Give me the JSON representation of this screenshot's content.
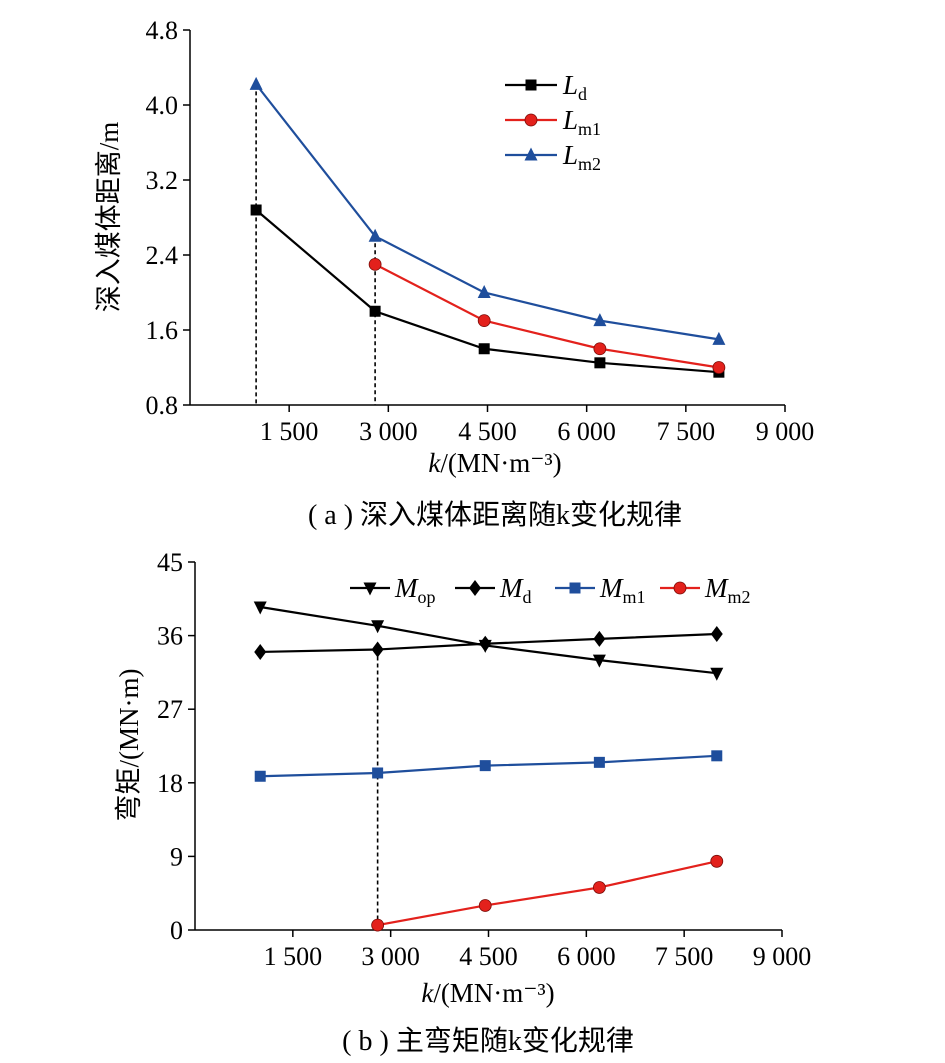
{
  "chart_data": [
    {
      "type": "line",
      "caption": "( a ) 深入煤体距离随k变化规律",
      "ylabel": "深入煤体距离/m",
      "xlabel": "k/(MN·m⁻³)",
      "xlim": [
        0,
        9000
      ],
      "ylim": [
        0.8,
        4.8
      ],
      "xticks": [
        1500,
        3000,
        4500,
        6000,
        7500,
        9000
      ],
      "xtick_labels": [
        "1 500",
        "3 000",
        "4 500",
        "6 000",
        "7 500",
        "9 000"
      ],
      "yticks": [
        0.8,
        1.6,
        2.4,
        3.2,
        4.0,
        4.8
      ],
      "ytick_labels": [
        "0.8",
        "1.6",
        "2.4",
        "3.2",
        "4.0",
        "4.8"
      ],
      "legend_position": "top-right",
      "series": [
        {
          "name": "Ld",
          "label_main": "L",
          "label_sub": "d",
          "marker": "square",
          "color": "#000000",
          "x": [
            1000,
            2800,
            4450,
            6200,
            8000
          ],
          "y": [
            2.88,
            1.8,
            1.4,
            1.25,
            1.15
          ]
        },
        {
          "name": "Lm1",
          "label_main": "L",
          "label_sub": "m1",
          "marker": "circle",
          "color": "#e3211c",
          "x": [
            2800,
            4450,
            6200,
            8000
          ],
          "y": [
            2.3,
            1.7,
            1.4,
            1.2
          ]
        },
        {
          "name": "Lm2",
          "label_main": "L",
          "label_sub": "m2",
          "marker": "triangle-up",
          "color": "#1f4e9c",
          "x": [
            1000,
            2800,
            4450,
            6200,
            8000
          ],
          "y": [
            4.22,
            2.6,
            2.0,
            1.7,
            1.5
          ]
        }
      ],
      "reference_lines_x": [
        1000,
        2800
      ]
    },
    {
      "type": "line",
      "caption": "( b ) 主弯矩随k变化规律",
      "ylabel": "弯矩/(MN·m)",
      "xlabel": "k/(MN·m⁻³)",
      "xlim": [
        0,
        9000
      ],
      "ylim": [
        0,
        45
      ],
      "xticks": [
        1500,
        3000,
        4500,
        6000,
        7500,
        9000
      ],
      "xtick_labels": [
        "1 500",
        "3 000",
        "4 500",
        "6 000",
        "7 500",
        "9 000"
      ],
      "yticks": [
        0,
        9,
        18,
        27,
        36,
        45
      ],
      "ytick_labels": [
        "0",
        "9",
        "18",
        "27",
        "36",
        "45"
      ],
      "legend_position": "top",
      "series": [
        {
          "name": "Mop",
          "label_main": "M",
          "label_sub": "op",
          "marker": "triangle-down",
          "color": "#000000",
          "x": [
            1000,
            2800,
            4450,
            6200,
            8000
          ],
          "y": [
            39.5,
            37.2,
            34.8,
            33.0,
            31.4
          ]
        },
        {
          "name": "Md",
          "label_main": "M",
          "label_sub": "d",
          "marker": "diamond",
          "color": "#000000",
          "x": [
            1000,
            2800,
            4450,
            6200,
            8000
          ],
          "y": [
            34.0,
            34.3,
            35.0,
            35.6,
            36.2
          ]
        },
        {
          "name": "Mm1",
          "label_main": "M",
          "label_sub": "m1",
          "marker": "square",
          "color": "#1f4e9c",
          "x": [
            1000,
            2800,
            4450,
            6200,
            8000
          ],
          "y": [
            18.8,
            19.2,
            20.1,
            20.5,
            21.3
          ]
        },
        {
          "name": "Mm2",
          "label_main": "M",
          "label_sub": "m2",
          "marker": "circle",
          "color": "#e3211c",
          "x": [
            2800,
            4450,
            6200,
            8000
          ],
          "y": [
            0.6,
            3.0,
            5.2,
            8.4
          ]
        }
      ],
      "reference_lines_x": [
        2800
      ]
    }
  ]
}
